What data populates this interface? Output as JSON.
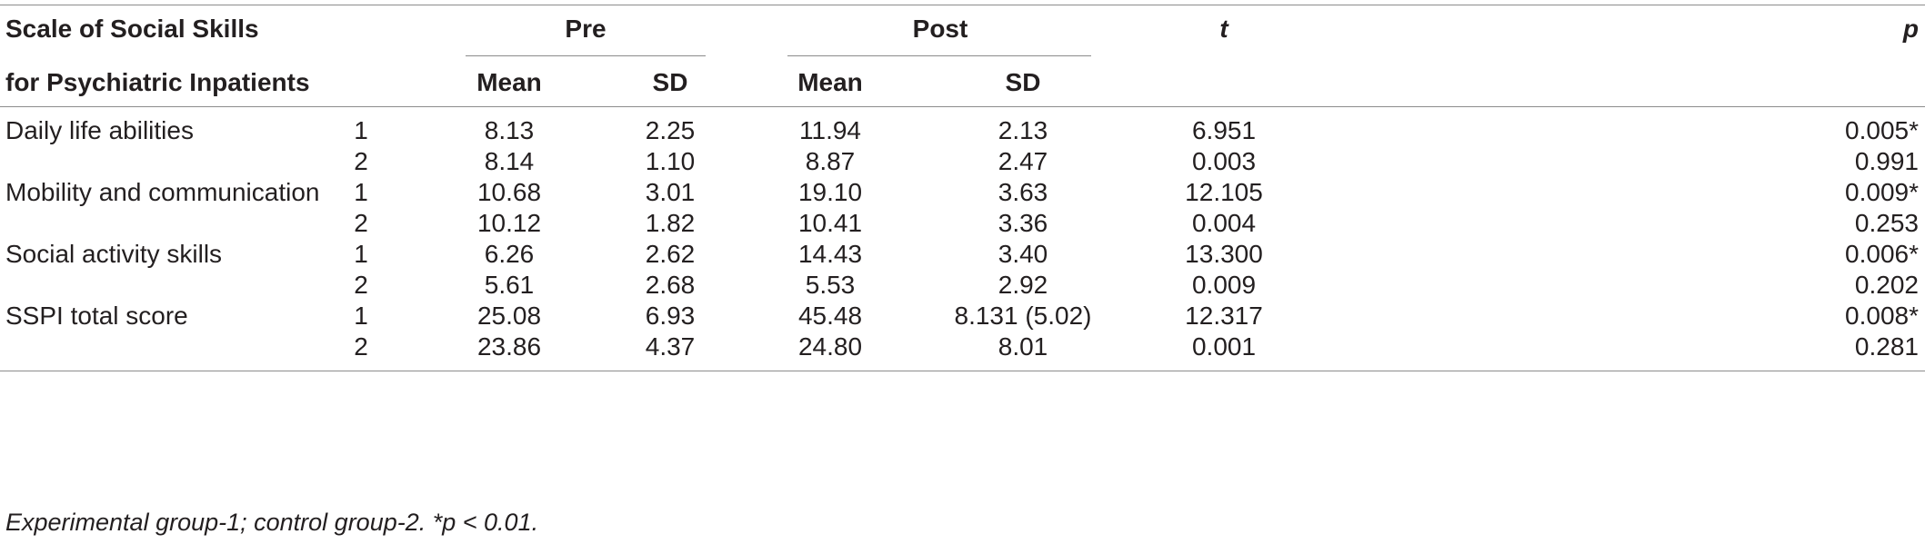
{
  "table": {
    "header": {
      "scale_line1": "Scale of Social Skills",
      "scale_line2": "for Psychiatric Inpatients",
      "pre": "Pre",
      "post": "Post",
      "t": "t",
      "p": "p",
      "pre_mean": "Mean",
      "pre_sd": "SD",
      "post_mean": "Mean",
      "post_sd": "SD"
    },
    "rows": [
      {
        "label": "Daily life abilities",
        "group": "1",
        "pre_mean": "8.13",
        "pre_sd": "2.25",
        "post_mean": "11.94",
        "post_sd": "2.13",
        "t": "6.951",
        "p": "0.005*"
      },
      {
        "label": "",
        "group": "2",
        "pre_mean": "8.14",
        "pre_sd": "1.10",
        "post_mean": "8.87",
        "post_sd": "2.47",
        "t": "0.003",
        "p": "0.991"
      },
      {
        "label": "Mobility and communication",
        "group": "1",
        "pre_mean": "10.68",
        "pre_sd": "3.01",
        "post_mean": "19.10",
        "post_sd": "3.63",
        "t": "12.105",
        "p": "0.009*"
      },
      {
        "label": "",
        "group": "2",
        "pre_mean": "10.12",
        "pre_sd": "1.82",
        "post_mean": "10.41",
        "post_sd": "3.36",
        "t": "0.004",
        "p": "0.253"
      },
      {
        "label": "Social activity skills",
        "group": "1",
        "pre_mean": "6.26",
        "pre_sd": "2.62",
        "post_mean": "14.43",
        "post_sd": "3.40",
        "t": "13.300",
        "p": "0.006*"
      },
      {
        "label": "",
        "group": "2",
        "pre_mean": "5.61",
        "pre_sd": "2.68",
        "post_mean": "5.53",
        "post_sd": "2.92",
        "t": "0.009",
        "p": "0.202"
      },
      {
        "label": "SSPI total score",
        "group": "1",
        "pre_mean": "25.08",
        "pre_sd": "6.93",
        "post_mean": "45.48",
        "post_sd": "8.131 (5.02)",
        "t": "12.317",
        "p": "0.008*"
      },
      {
        "label": "",
        "group": "2",
        "pre_mean": "23.86",
        "pre_sd": "4.37",
        "post_mean": "24.80",
        "post_sd": "8.01",
        "t": "0.001",
        "p": "0.281"
      }
    ],
    "footnote": "Experimental group-1; control group-2. *p < 0.01."
  }
}
